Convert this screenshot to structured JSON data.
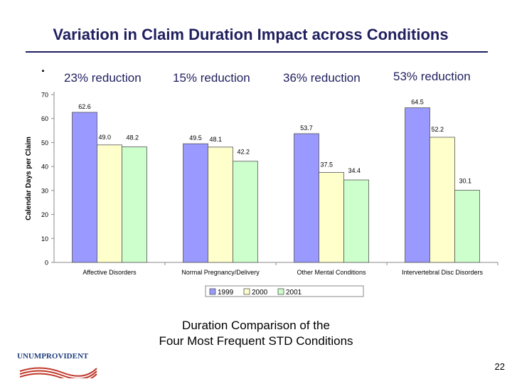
{
  "title": "Variation in Claim Duration Impact across Conditions",
  "bullet": "·",
  "reductions": [
    "23% reduction",
    "15% reduction",
    "36% reduction",
    "53% reduction"
  ],
  "subtitle_line1": "Duration Comparison of the",
  "subtitle_line2": "Four Most Frequent STD Conditions",
  "page_number": "22",
  "logo_text": "UNUMPROVIDENT",
  "colors": {
    "title": "#1f1f5f",
    "series_1999": "#9999ff",
    "series_2000": "#ffffcc",
    "series_2001": "#ccffcc"
  },
  "chart_data": {
    "type": "bar",
    "title": "",
    "xlabel": "",
    "ylabel": "Calendar Days per Claim",
    "ylim": [
      0,
      70
    ],
    "yticks": [
      0,
      10,
      20,
      30,
      40,
      50,
      60,
      70
    ],
    "grid": false,
    "legend": "bottom-center",
    "categories": [
      "Affective Disorders",
      "Normal Pregnancy/Delivery",
      "Other Mental Conditions",
      "Intervertebral Disc Disorders"
    ],
    "series": [
      {
        "name": "1999",
        "values": [
          62.6,
          49.5,
          53.7,
          64.5
        ],
        "labels": [
          "62.6",
          "49.5",
          "53.7",
          "64.5"
        ]
      },
      {
        "name": "2000",
        "values": [
          49.0,
          48.1,
          37.5,
          52.2
        ],
        "labels": [
          "49.0",
          "48.1",
          "37.5",
          "52.2"
        ]
      },
      {
        "name": "2001",
        "values": [
          48.2,
          42.2,
          34.4,
          30.1
        ],
        "labels": [
          "48.2",
          "42.2",
          "34.4",
          "30.1"
        ]
      }
    ]
  }
}
